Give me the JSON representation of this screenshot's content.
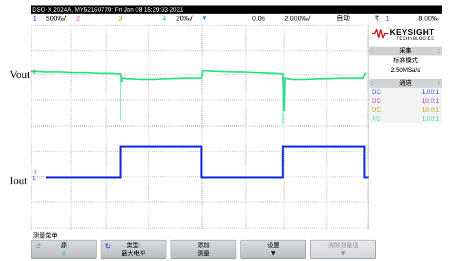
{
  "titlebar": {
    "text": "DSO-X 2024A, MY52160779: Fri Jan 08 15:29:33 2021"
  },
  "status": {
    "ch1_num": "1",
    "ch1_scale": "500‰/",
    "ch2_num": "2",
    "ch3_num": "3",
    "ch4_num": "4",
    "ch4_scale": "20‰/",
    "time_offset": "0.0s",
    "time_scale": "2.000‰/",
    "trigger_mode": "自动",
    "trigger_ch": "1",
    "trigger_level": "8.00‰"
  },
  "labels": {
    "vout": "Vout",
    "iout": "Iout",
    "vout_marker": "4",
    "iout_marker": "1",
    "trig_marker": "T"
  },
  "sidepanel": {
    "brand": "KEYSIGHT",
    "brand_sub": "TECHNOLOGIES",
    "acq_header": "采集",
    "acq_mode": "标准模式",
    "acq_rate": "2.50MSa/s",
    "channels_header": "通道",
    "channels": [
      {
        "coupling": "DC",
        "probe": "1.00:1",
        "color": "#3a55e6"
      },
      {
        "coupling": "DC",
        "probe": "10.0:1",
        "color": "#cc33cc"
      },
      {
        "coupling": "DC",
        "probe": "10.0:1",
        "color": "#b3a021"
      },
      {
        "coupling": "AC",
        "probe": "1.00:1",
        "color": "#33e08a"
      }
    ]
  },
  "menu": {
    "title": "测量菜单",
    "keys": [
      {
        "label": "源",
        "value": "4",
        "value_color": "#22dd88",
        "disabled": false
      },
      {
        "label": "类型:",
        "value": "最大电平",
        "disabled": false
      },
      {
        "label": "添加",
        "value": "测量",
        "disabled": false
      },
      {
        "label": "设置",
        "value": "",
        "disabled": false
      },
      {
        "label": "清除测量值",
        "value": "",
        "disabled": true
      }
    ]
  },
  "colors": {
    "ch1_trace": "#1a2fe0",
    "ch4_trace": "#33e08a",
    "ch2": "#cc33cc",
    "ch3": "#b3a021",
    "trigger": "#3a7be6"
  }
}
